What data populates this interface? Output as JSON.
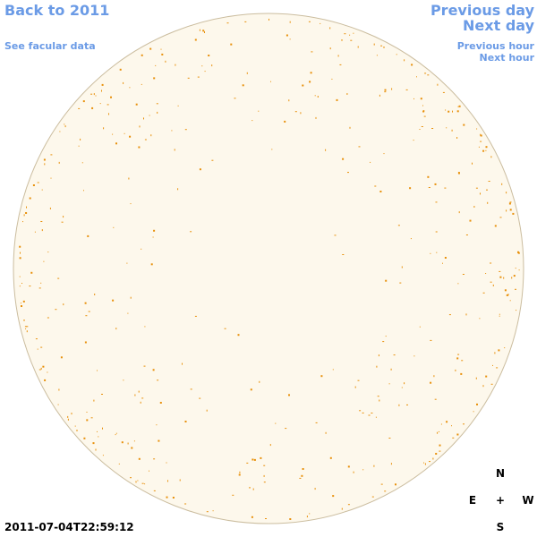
{
  "header": {
    "back_link": "Back to 2011",
    "facular_link": "See facular data",
    "previous_day": "Previous day",
    "next_day": "Next day",
    "previous_hour": "Previous hour",
    "next_hour": "Next hour"
  },
  "timestamp": "2011-07-04T22:59:12",
  "compass": {
    "north": "N",
    "east": "E",
    "center": "+",
    "west": "W",
    "south": "S"
  }
}
